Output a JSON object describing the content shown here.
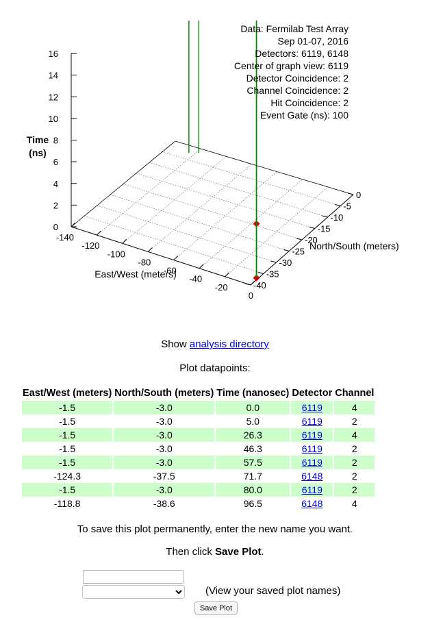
{
  "plot": {
    "info_lines": [
      "Data: Fermilab Test Array",
      "Sep 01-07, 2016",
      "Detectors: 6119, 6148",
      "Center of graph view:  6119",
      "Detector Coincidence: 2",
      "Channel Coincidence: 2",
      "Hit Coincidence: 2",
      "Event Gate (ns): 100"
    ],
    "time_axis_label_line1": "Time",
    "time_axis_label_line2": "(ns)",
    "ew_axis_label": "East/West (meters)",
    "ns_axis_label": "North/South (meters)",
    "time_ticks": [
      "0",
      "2",
      "4",
      "6",
      "8",
      "10",
      "12",
      "14",
      "16"
    ],
    "ew_ticks": [
      "-140",
      "-120",
      "-100",
      "-80",
      "-60",
      "-40",
      "-20",
      "0"
    ],
    "ns_ticks": [
      "0",
      "-5",
      "-10",
      "-15",
      "-20",
      "-25",
      "-30",
      "-35",
      "-40"
    ],
    "line_color": "#008800",
    "marker_color": "#dd0000"
  },
  "show_text": "Show ",
  "analysis_link": "analysis directory",
  "datapoints_title": "Plot datapoints:",
  "table": {
    "headers": [
      "East/West (meters)",
      "North/South (meters)",
      "Time (nanosec)",
      "Detector",
      "Channel"
    ],
    "rows": [
      [
        "-1.5",
        "-3.0",
        "0.0",
        "6119",
        "4"
      ],
      [
        "-1.5",
        "-3.0",
        "5.0",
        "6119",
        "2"
      ],
      [
        "-1.5",
        "-3.0",
        "26.3",
        "6119",
        "4"
      ],
      [
        "-1.5",
        "-3.0",
        "46.3",
        "6119",
        "2"
      ],
      [
        "-1.5",
        "-3.0",
        "57.5",
        "6119",
        "2"
      ],
      [
        "-124.3",
        "-37.5",
        "71.7",
        "6148",
        "2"
      ],
      [
        "-1.5",
        "-3.0",
        "80.0",
        "6119",
        "2"
      ],
      [
        "-118.8",
        "-38.6",
        "96.5",
        "6148",
        "4"
      ]
    ],
    "shade_color": "#ccffcc"
  },
  "save_instructions": "To save this plot permanently, enter the new name you want.",
  "then_click_prefix": "Then click ",
  "then_click_bold": "Save Plot",
  "then_click_suffix": ".",
  "name_input": {
    "value": "",
    "placeholder": ""
  },
  "saved_select": {
    "selected": ""
  },
  "saved_note": "(View your saved plot names)",
  "save_button_label": "Save Plot"
}
